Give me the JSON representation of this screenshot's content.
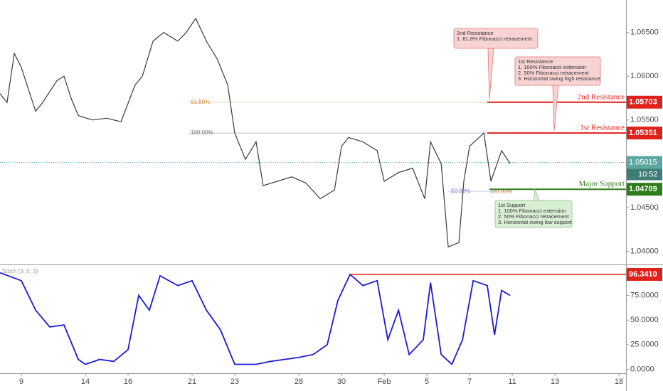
{
  "chart_data": {
    "type": "line",
    "xlim": [
      -1,
      28.33
    ],
    "xticks": [
      {
        "value": 0,
        "label": "9"
      },
      {
        "value": 3,
        "label": "14"
      },
      {
        "value": 5,
        "label": "16"
      },
      {
        "value": 8,
        "label": "21"
      },
      {
        "value": 10,
        "label": "23"
      },
      {
        "value": 13,
        "label": "28"
      },
      {
        "value": 15,
        "label": "30"
      },
      {
        "value": 17,
        "label": "Feb"
      },
      {
        "value": 19,
        "label": "5"
      },
      {
        "value": 21,
        "label": "7"
      },
      {
        "value": 23,
        "label": "11"
      },
      {
        "value": 25,
        "label": "13"
      },
      {
        "value": 28,
        "label": "18"
      }
    ],
    "ylim": [
      1.0385,
      1.0687
    ],
    "yticks": [
      {
        "value": 1.065,
        "label": "1.06500"
      },
      {
        "value": 1.06,
        "label": "1.06000"
      },
      {
        "value": 1.055,
        "label": "1.05500"
      },
      {
        "value": 1.045,
        "label": "1.04500"
      },
      {
        "value": 1.04,
        "label": "1.04000"
      }
    ],
    "y2lim": [
      -4,
      105
    ],
    "y2ticks": [
      {
        "value": 75,
        "label": "75.0000"
      },
      {
        "value": 50,
        "label": "50.0000"
      },
      {
        "value": 25,
        "label": "25.0000"
      },
      {
        "value": 0,
        "label": "0.0000"
      }
    ],
    "series": [
      {
        "color": "#3a3a3a",
        "x": [
          -1,
          -0.67,
          -0.33,
          0,
          0.33,
          0.67,
          1,
          1.67,
          2,
          2.33,
          2.67,
          3.33,
          4,
          4.67,
          5.33,
          5.67,
          6.17,
          6.67,
          7.33,
          7.73,
          8.17,
          8.67,
          9.17,
          9.67,
          10,
          10.5,
          11,
          11.33,
          12,
          12.67,
          13.33,
          14,
          14.67,
          15,
          15.33,
          16,
          16.67,
          17,
          17.67,
          18.33,
          18.9,
          19.17,
          19.67,
          20,
          20.5,
          20.73,
          21,
          21.67,
          22,
          22.5,
          22.9
        ],
        "values": [
          1.058,
          1.057,
          1.0626,
          1.061,
          1.0585,
          1.056,
          1.057,
          1.0595,
          1.06,
          1.0575,
          1.0555,
          1.055,
          1.0552,
          1.0548,
          1.059,
          1.06,
          1.064,
          1.065,
          1.064,
          1.065,
          1.0666,
          1.064,
          1.062,
          1.059,
          1.0535,
          1.0505,
          1.0525,
          1.0475,
          1.048,
          1.0485,
          1.0478,
          1.046,
          1.047,
          1.052,
          1.053,
          1.0525,
          1.0515,
          1.048,
          1.049,
          1.0495,
          1.046,
          1.0525,
          1.05,
          1.0405,
          1.041,
          1.048,
          1.052,
          1.0535,
          1.048,
          1.0515,
          1.05
        ]
      },
      {
        "name": "Stoch (9, 5, 3)",
        "color": "#1a1adb",
        "axis": "y2",
        "x": [
          -1,
          0,
          0.67,
          1.33,
          2,
          2.67,
          3,
          3.67,
          4.33,
          5,
          5.5,
          6,
          6.5,
          7.33,
          8,
          8.67,
          9.33,
          10,
          11,
          11.67,
          13,
          13.67,
          14.33,
          14.83,
          15.4,
          16,
          16.67,
          17.17,
          17.67,
          18.17,
          18.83,
          19.17,
          19.67,
          20.17,
          20.67,
          21.17,
          21.83,
          22.17,
          22.5,
          22.9
        ],
        "values": [
          98,
          90,
          60,
          43,
          45,
          10,
          5,
          10,
          8,
          20,
          75,
          60,
          95,
          85,
          90,
          60,
          40,
          5,
          5,
          8,
          12,
          15,
          25,
          70,
          96.341,
          85,
          90,
          30,
          60,
          15,
          30,
          88,
          15,
          5,
          30,
          90,
          85,
          35,
          80,
          75
        ]
      }
    ],
    "levels": [
      {
        "name": "2nd Resistance",
        "value": 1.05703,
        "color": "#e0201a"
      },
      {
        "name": "1st Resistance",
        "value": 1.05351,
        "color": "#e0201a"
      },
      {
        "name": "Major Support",
        "value": 1.04709,
        "color": "#2e7d1a"
      }
    ],
    "fib_labels": [
      {
        "label": "61.80%",
        "value": 1.05703
      },
      {
        "label": "100.00%",
        "value": 1.05351
      },
      {
        "label": "50.00%",
        "value": 1.04709
      },
      {
        "label": "100.00%",
        "value": 1.04709
      }
    ],
    "current_price": 1.05015,
    "countdown": "10:52",
    "stoch_level": {
      "value": 96.341,
      "label": "96.3410"
    },
    "annotations": [
      {
        "lines": [
          "2nd Resistance",
          "1. 61.8% Fibonacci retracement"
        ]
      },
      {
        "lines": [
          "1st Resistance",
          "1. 100% Fibonacci extension",
          "2. 50% Fibonacci retracement",
          "3. Horizontal swing high resistance"
        ]
      },
      {
        "lines": [
          "1st Support",
          "1. 100% Fibonacci extension",
          "2. 50% Fibonacci retracement",
          "3. Horizontal swing low support"
        ]
      }
    ]
  }
}
